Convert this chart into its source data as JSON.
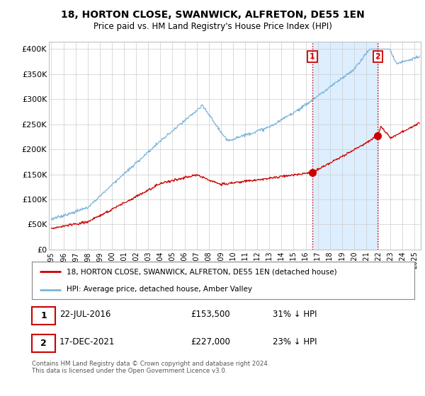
{
  "title_line1": "18, HORTON CLOSE, SWANWICK, ALFRETON, DE55 1EN",
  "title_line2": "Price paid vs. HM Land Registry's House Price Index (HPI)",
  "ylabel_ticks": [
    "£0",
    "£50K",
    "£100K",
    "£150K",
    "£200K",
    "£250K",
    "£300K",
    "£350K",
    "£400K"
  ],
  "ytick_values": [
    0,
    50000,
    100000,
    150000,
    200000,
    250000,
    300000,
    350000,
    400000
  ],
  "ylim": [
    0,
    415000
  ],
  "xlim_start": 1994.8,
  "xlim_end": 2025.5,
  "hpi_color": "#7ab4d8",
  "price_color": "#cc0000",
  "shade_color": "#ddeeff",
  "vline_color": "#cc0000",
  "transaction1_date": "22-JUL-2016",
  "transaction1_price": 153500,
  "transaction1_year": 2016.55,
  "transaction1_label": "1",
  "transaction1_pct": "31% ↓ HPI",
  "transaction2_date": "17-DEC-2021",
  "transaction2_price": 227000,
  "transaction2_year": 2021.96,
  "transaction2_label": "2",
  "transaction2_pct": "23% ↓ HPI",
  "legend_label_red": "18, HORTON CLOSE, SWANWICK, ALFRETON, DE55 1EN (detached house)",
  "legend_label_blue": "HPI: Average price, detached house, Amber Valley",
  "footer_text": "Contains HM Land Registry data © Crown copyright and database right 2024.\nThis data is licensed under the Open Government Licence v3.0.",
  "background_color": "#ffffff",
  "grid_color": "#cccccc"
}
